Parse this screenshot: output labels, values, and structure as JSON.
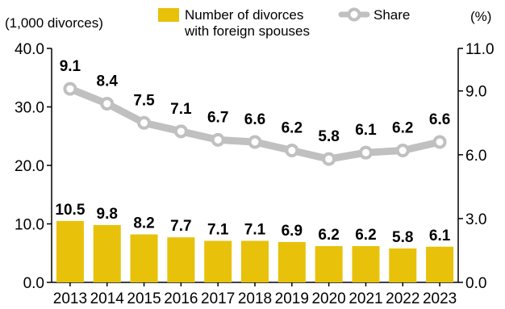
{
  "chart_data": {
    "type": "bar+line",
    "categories": [
      "2013",
      "2014",
      "2015",
      "2016",
      "2017",
      "2018",
      "2019",
      "2020",
      "2021",
      "2022",
      "2023"
    ],
    "series": [
      {
        "name": "Number of divorces with foreign spouses",
        "legend_lines": [
          "Number of divorces",
          "with foreign spouses"
        ],
        "type": "bar",
        "axis": "left",
        "color": "#E8C10A",
        "values": [
          10.5,
          9.8,
          8.2,
          7.7,
          7.1,
          7.1,
          6.9,
          6.2,
          6.2,
          5.8,
          6.1
        ],
        "labels": [
          "10.5",
          "9.8",
          "8.2",
          "7.7",
          "7.1",
          "7.1",
          "6.9",
          "6.2",
          "6.2",
          "5.8",
          "6.1"
        ]
      },
      {
        "name": "Share",
        "type": "line",
        "axis": "right",
        "color": "#C0C0C0",
        "values": [
          9.1,
          8.4,
          7.5,
          7.1,
          6.7,
          6.6,
          6.2,
          5.8,
          6.1,
          6.2,
          6.6
        ],
        "labels": [
          "9.1",
          "8.4",
          "7.5",
          "7.1",
          "6.7",
          "6.6",
          "6.2",
          "5.8",
          "6.1",
          "6.2",
          "6.6"
        ]
      }
    ],
    "left_axis": {
      "unit": "(1,000 divorces)",
      "ylim": [
        0,
        40
      ],
      "ticks": [
        0,
        10,
        20,
        30,
        40
      ],
      "tick_labels": [
        "0.0",
        "10.0",
        "20.0",
        "30.0",
        "40.0"
      ]
    },
    "right_axis": {
      "unit": "(%)",
      "ylim": [
        0,
        11
      ],
      "ticks": [
        0,
        3,
        6,
        9,
        11
      ],
      "tick_labels": [
        "0.0",
        "3.0",
        "6.0",
        "9.0",
        "11.0"
      ]
    },
    "legend_position": "top",
    "grid": false
  }
}
